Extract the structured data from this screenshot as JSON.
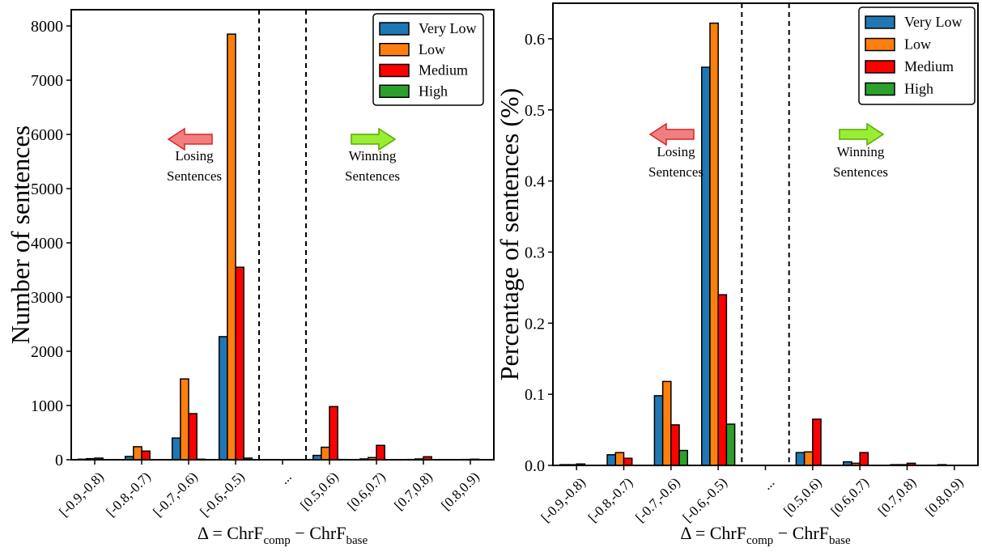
{
  "chart_data": [
    {
      "type": "bar",
      "categories": [
        "[-0.9,-0.8)",
        "[-0.8,-0.7)",
        "[-0.7,-0.6)",
        "[-0.6,-0.5)",
        "...",
        "[0.5,0.6)",
        "[0.6,0.7)",
        "[0.7,0.8)",
        "[0.8,0.9)"
      ],
      "series": [
        {
          "name": "Very Low",
          "color": "#1f77b4",
          "values": [
            10,
            60,
            400,
            2270,
            0,
            80,
            15,
            5,
            0
          ]
        },
        {
          "name": "Low",
          "color": "#ff7f0e",
          "values": [
            20,
            240,
            1490,
            7850,
            0,
            230,
            40,
            15,
            5
          ]
        },
        {
          "name": "Medium",
          "color": "#ff0000",
          "values": [
            30,
            160,
            850,
            3550,
            0,
            980,
            265,
            55,
            10
          ]
        },
        {
          "name": "High",
          "color": "#2ca02c",
          "values": [
            0,
            0,
            10,
            30,
            0,
            5,
            0,
            0,
            0
          ]
        }
      ],
      "xlabel": {
        "base": "Δ = ChrF",
        "sub1": "comp",
        "mid": " − ChrF",
        "sub2": "base"
      },
      "ylabel": "Number of sentences",
      "ylim": [
        0,
        8300
      ],
      "yticks": [
        0,
        1000,
        2000,
        3000,
        4000,
        5000,
        6000,
        7000,
        8000
      ],
      "ytick_labels": [
        "0",
        "1000",
        "2000",
        "3000",
        "4000",
        "5000",
        "6000",
        "7000",
        "8000"
      ],
      "legend_position": "top-right",
      "dividers_after_categories": [
        3,
        4
      ],
      "annotations": {
        "losing": {
          "line1": "Losing",
          "line2": "Sentences",
          "arrow": "left",
          "arrow_color": "#f08080"
        },
        "winning": {
          "line1": "Winning",
          "line2": "Sentences",
          "arrow": "right",
          "arrow_color": "#99ee33"
        }
      }
    },
    {
      "type": "bar",
      "categories": [
        "[-0.9,-0.8)",
        "[-0.8,-0.7)",
        "[-0.7,-0.6)",
        "[-0.6,-0.5)",
        "...",
        "[0.5,0.6)",
        "[0.6,0.7)",
        "[0.7,0.8)",
        "[0.8,0.9)"
      ],
      "series": [
        {
          "name": "Very Low",
          "color": "#1f77b4",
          "values": [
            0.001,
            0.015,
            0.098,
            0.56,
            0,
            0.018,
            0.005,
            0.001,
            0.001
          ]
        },
        {
          "name": "Low",
          "color": "#ff7f0e",
          "values": [
            0.001,
            0.018,
            0.118,
            0.622,
            0,
            0.019,
            0.003,
            0.001,
            0
          ]
        },
        {
          "name": "Medium",
          "color": "#ff0000",
          "values": [
            0.002,
            0.01,
            0.057,
            0.24,
            0,
            0.065,
            0.018,
            0.003,
            0
          ]
        },
        {
          "name": "High",
          "color": "#2ca02c",
          "values": [
            0,
            0,
            0.021,
            0.058,
            0,
            0,
            0,
            0,
            0
          ]
        }
      ],
      "xlabel": {
        "base": "Δ = ChrF",
        "sub1": "comp",
        "mid": " − ChrF",
        "sub2": "base"
      },
      "ylabel": "Percentage of sentences (%)",
      "ylim": [
        0,
        0.65
      ],
      "yticks": [
        0,
        0.1,
        0.2,
        0.3,
        0.4,
        0.5,
        0.6
      ],
      "ytick_labels": [
        "0.0",
        "0.1",
        "0.2",
        "0.3",
        "0.4",
        "0.5",
        "0.6"
      ],
      "legend_position": "top-right",
      "dividers_after_categories": [
        3,
        4
      ],
      "annotations": {
        "losing": {
          "line1": "Losing",
          "line2": "Sentences",
          "arrow": "left",
          "arrow_color": "#f08080"
        },
        "winning": {
          "line1": "Winning",
          "line2": "Sentences",
          "arrow": "right",
          "arrow_color": "#99ee33"
        }
      }
    }
  ]
}
